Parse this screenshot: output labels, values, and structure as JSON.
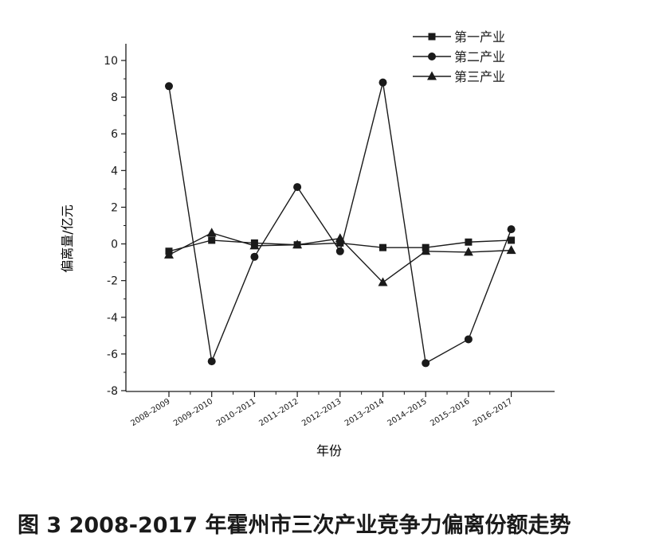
{
  "chart_data": {
    "type": "line",
    "caption": "图 3   2008-2017 年霍州市三次产业竞争力偏离份额走势",
    "xlabel": "年份",
    "ylabel": "偏离量/亿元",
    "ylim": [
      -8,
      10
    ],
    "yticks": [
      10,
      8,
      6,
      4,
      2,
      0,
      -2,
      -4,
      -6,
      -8
    ],
    "ytick_labels": [
      "10",
      "8",
      "6",
      "4",
      "2",
      "0",
      "-2",
      "-4",
      "-6",
      "-8"
    ],
    "categories": [
      "2008–2009",
      "2009–2010",
      "2010–2011",
      "2011–2012",
      "2012–2013",
      "2013–2014",
      "2014–2015",
      "2015–2016",
      "2016–2017"
    ],
    "legend_position": "top-right",
    "grid": false,
    "series": [
      {
        "name": "第一产业",
        "marker": "square",
        "values": [
          -0.4,
          0.2,
          0.05,
          -0.05,
          0.05,
          -0.2,
          -0.2,
          0.1,
          0.2
        ]
      },
      {
        "name": "第二产业",
        "marker": "circle",
        "values": [
          8.6,
          -6.4,
          -0.7,
          3.1,
          -0.4,
          8.8,
          -6.5,
          -5.2,
          0.8
        ]
      },
      {
        "name": "第三产业",
        "marker": "triangle",
        "values": [
          -0.6,
          0.6,
          -0.1,
          -0.05,
          0.3,
          -2.1,
          -0.4,
          -0.45,
          -0.35
        ]
      }
    ]
  }
}
